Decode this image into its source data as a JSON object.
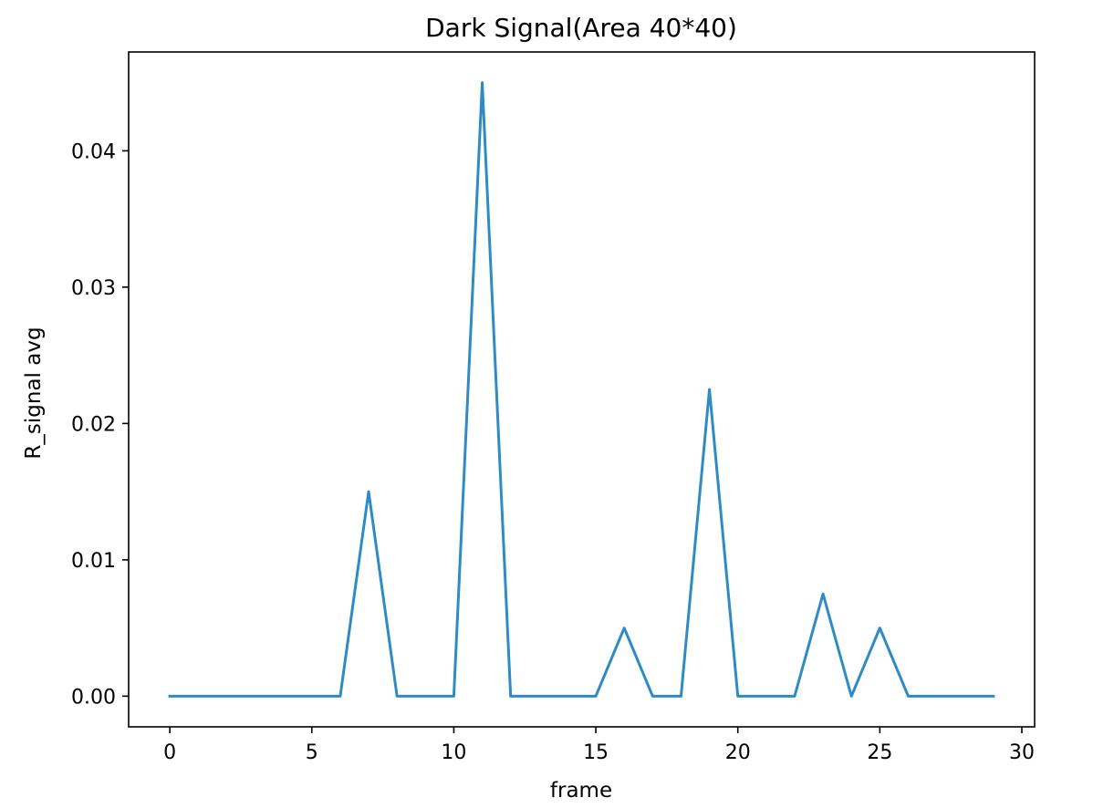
{
  "chart_data": {
    "type": "line",
    "title": "Dark Signal(Area 40*40)",
    "xlabel": "frame",
    "ylabel": "R_signal avg",
    "xlim": [
      -1.45,
      30.45
    ],
    "ylim": [
      -0.00225,
      0.04725
    ],
    "x_ticks": [
      0,
      5,
      10,
      15,
      20,
      25,
      30
    ],
    "x_tick_labels": [
      "0",
      "5",
      "10",
      "15",
      "20",
      "25",
      "30"
    ],
    "y_ticks": [
      0.0,
      0.01,
      0.02,
      0.03,
      0.04
    ],
    "y_tick_labels": [
      "0.00",
      "0.01",
      "0.02",
      "0.03",
      "0.04"
    ],
    "grid": false,
    "series": [
      {
        "color": "#2f8bc4",
        "x": [
          0,
          1,
          2,
          3,
          4,
          5,
          6,
          7,
          8,
          9,
          10,
          11,
          12,
          13,
          14,
          15,
          16,
          17,
          18,
          19,
          20,
          21,
          22,
          23,
          24,
          25,
          26,
          27,
          28,
          29
        ],
        "y": [
          0,
          0,
          0,
          0,
          0,
          0,
          0,
          0.015,
          0,
          0,
          0,
          0.045,
          0,
          0,
          0,
          0,
          0.005,
          0,
          0,
          0.0225,
          0,
          0,
          0,
          0.0075,
          0,
          0.005,
          0,
          0,
          0,
          0
        ]
      }
    ]
  }
}
